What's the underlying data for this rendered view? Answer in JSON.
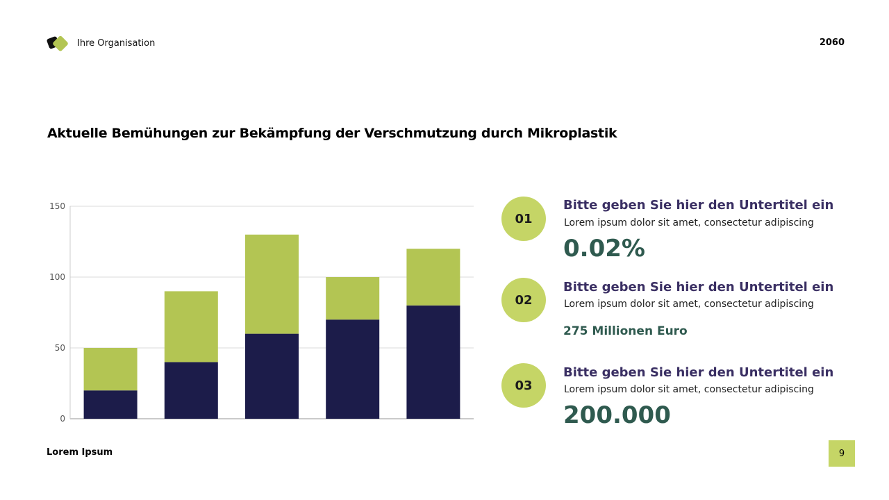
{
  "header": {
    "organization": "Ihre Organisation",
    "year": "2060"
  },
  "title": "Aktuelle Bemühungen zur Bekämpfung der Verschmutzung durch Mikroplastik",
  "footer": {
    "text": "Lorem Ipsum",
    "page_number": "9"
  },
  "items": [
    {
      "number": "01",
      "subtitle": "Bitte geben Sie hier den Untertitel ein",
      "description": "Lorem ipsum dolor sit amet, consectetur adipiscing",
      "value": "0.02%"
    },
    {
      "number": "02",
      "subtitle": "Bitte geben Sie hier den Untertitel ein",
      "description": "Lorem ipsum dolor sit amet, consectetur adipiscing",
      "value": "275 Millionen Euro"
    },
    {
      "number": "03",
      "subtitle": "Bitte geben Sie hier den Untertitel ein",
      "description": "Lorem ipsum dolor sit amet, consectetur adipiscing",
      "value": "200.000"
    }
  ],
  "colors": {
    "accent": "#c5d566",
    "green": "#b3c553",
    "navy": "#1c1c4a",
    "value_text": "#2f5a4f",
    "subtitle_text": "#3a2f63"
  },
  "chart_data": {
    "type": "bar",
    "stacked": true,
    "categories": [
      "",
      "",
      "",
      "",
      ""
    ],
    "series": [
      {
        "values": [
          20,
          40,
          60,
          70,
          80
        ],
        "color": "#1c1c4a"
      },
      {
        "values": [
          30,
          50,
          70,
          30,
          40
        ],
        "color": "#b3c553"
      }
    ],
    "ylim": [
      0,
      150
    ],
    "yticks": [
      0,
      50,
      100,
      150
    ],
    "grid": true,
    "legend": "none"
  }
}
